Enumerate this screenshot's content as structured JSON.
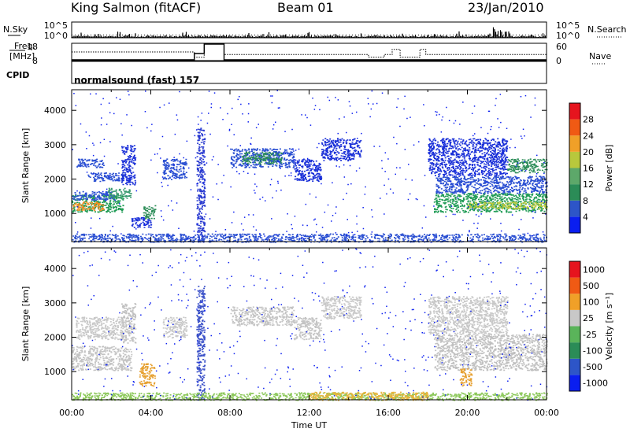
{
  "header": {
    "station": "King Salmon (fitACF)",
    "beam": "Beam 01",
    "date": "23/Jan/2010"
  },
  "top_panels": {
    "nsky_label": "N.Sky",
    "nsearch_label": "N.Search",
    "freq_label_line1": "Freq.",
    "freq_label_line2": "[MHz]",
    "nave_label": "Nave",
    "cpid_label": "CPID",
    "cpid_value": "normalsound (fast) 157",
    "noise_ticks_left": [
      "10^5",
      "10^0"
    ],
    "noise_ticks_right": [
      "10^5",
      "10^0"
    ],
    "freq_ticks": [
      "18",
      "8"
    ],
    "nave_ticks": [
      "60",
      "0"
    ]
  },
  "chart_data": [
    {
      "type": "heatmap",
      "name": "power",
      "ylabel": "Slant Range [km]",
      "yticks": [
        1000,
        2000,
        3000,
        4000
      ],
      "ylim": [
        180,
        4600
      ],
      "xlim": [
        0,
        24
      ],
      "colorbar": {
        "label": "Power [dB]",
        "ticks": [
          "4",
          "8",
          "12",
          "16",
          "20",
          "24",
          "28"
        ],
        "colors": [
          "#0a1ef0",
          "#2d55c8",
          "#2b8c57",
          "#5da86a",
          "#b8c83c",
          "#f0a028",
          "#f05a14",
          "#e6141e"
        ]
      },
      "bands": [
        {
          "t0": 0.0,
          "t1": 2.6,
          "r0": 1050,
          "r1": 1550,
          "color": "#1f9b55"
        },
        {
          "t0": 0.0,
          "t1": 1.6,
          "r0": 1100,
          "r1": 1350,
          "color": "#f08c1e"
        },
        {
          "t0": 0.0,
          "t1": 2.2,
          "r0": 1400,
          "r1": 1650,
          "color": "#2a4fd2"
        },
        {
          "t0": 1.8,
          "t1": 3.0,
          "r0": 1450,
          "r1": 1750,
          "color": "#3a9a70"
        },
        {
          "t0": 0.2,
          "t1": 1.6,
          "r0": 2350,
          "r1": 2600,
          "color": "#2a4fd2"
        },
        {
          "t0": 0.8,
          "t1": 2.6,
          "r0": 1950,
          "r1": 2200,
          "color": "#2a4fd2"
        },
        {
          "t0": 2.5,
          "t1": 3.2,
          "r0": 1850,
          "r1": 3000,
          "color": "#1a30d8"
        },
        {
          "t0": 3.6,
          "t1": 4.2,
          "r0": 850,
          "r1": 1250,
          "color": "#2b8c57"
        },
        {
          "t0": 3.0,
          "t1": 4.0,
          "r0": 600,
          "r1": 900,
          "color": "#1a30d8"
        },
        {
          "t0": 4.6,
          "t1": 5.8,
          "r0": 2000,
          "r1": 2600,
          "color": "#2a4fd2"
        },
        {
          "t0": 6.3,
          "t1": 6.7,
          "r0": 180,
          "r1": 3500,
          "color": "#2a3bd0"
        },
        {
          "t0": 8.0,
          "t1": 11.2,
          "r0": 2350,
          "r1": 2900,
          "color": "#2a4fd2"
        },
        {
          "t0": 8.6,
          "t1": 10.6,
          "r0": 2450,
          "r1": 2800,
          "color": "#2b8c57"
        },
        {
          "t0": 11.2,
          "t1": 12.6,
          "r0": 1950,
          "r1": 2600,
          "color": "#1a30d8"
        },
        {
          "t0": 12.6,
          "t1": 14.6,
          "r0": 2550,
          "r1": 3200,
          "color": "#1a30d8"
        },
        {
          "t0": 18.3,
          "t1": 24.0,
          "r0": 1050,
          "r1": 1600,
          "color": "#1f9b55"
        },
        {
          "t0": 20.0,
          "t1": 24.0,
          "r0": 1150,
          "r1": 1350,
          "color": "#b8c83c"
        },
        {
          "t0": 18.4,
          "t1": 24.0,
          "r0": 1600,
          "r1": 2100,
          "color": "#2a4fd2"
        },
        {
          "t0": 18.0,
          "t1": 22.0,
          "r0": 2100,
          "r1": 3200,
          "color": "#1a30d8"
        },
        {
          "t0": 22.0,
          "t1": 24.0,
          "r0": 2200,
          "r1": 2600,
          "color": "#2b8c57"
        },
        {
          "t0": 0.0,
          "t1": 24.0,
          "r0": 180,
          "r1": 420,
          "color": "#2a4fd2"
        }
      ]
    },
    {
      "type": "heatmap",
      "name": "velocity",
      "ylabel": "Slant Range [km]",
      "yticks": [
        1000,
        2000,
        3000,
        4000
      ],
      "ylim": [
        180,
        4600
      ],
      "xlim": [
        0,
        24
      ],
      "colorbar": {
        "label": "Velocity [m s⁻¹]",
        "ticks": [
          "1000",
          "500",
          "100",
          "25",
          "-25",
          "-100",
          "-500",
          "-1000"
        ],
        "colors": [
          "#0a1ef0",
          "#2d55c8",
          "#2b8c57",
          "#5ab45a",
          "#c8c8c8",
          "#f0a028",
          "#f05a14",
          "#e6141e"
        ]
      },
      "bands": [
        {
          "t0": 0.0,
          "t1": 3.0,
          "r0": 1050,
          "r1": 1750,
          "color": "#c4c4c4"
        },
        {
          "t0": 0.2,
          "t1": 2.6,
          "r0": 1950,
          "r1": 2600,
          "color": "#c8c8c8"
        },
        {
          "t0": 2.5,
          "t1": 3.2,
          "r0": 1850,
          "r1": 3000,
          "color": "#c0c0c0"
        },
        {
          "t0": 3.4,
          "t1": 4.2,
          "r0": 600,
          "r1": 1250,
          "color": "#e6a030"
        },
        {
          "t0": 4.6,
          "t1": 5.8,
          "r0": 2000,
          "r1": 2600,
          "color": "#c8c8c8"
        },
        {
          "t0": 6.3,
          "t1": 6.7,
          "r0": 180,
          "r1": 3500,
          "color": "#3a50c8"
        },
        {
          "t0": 8.0,
          "t1": 11.2,
          "r0": 2350,
          "r1": 2900,
          "color": "#c4c4c4"
        },
        {
          "t0": 11.2,
          "t1": 12.6,
          "r0": 1950,
          "r1": 2600,
          "color": "#c4c4c4"
        },
        {
          "t0": 12.6,
          "t1": 14.6,
          "r0": 2550,
          "r1": 3200,
          "color": "#c8c8c8"
        },
        {
          "t0": 18.3,
          "t1": 24.0,
          "r0": 1050,
          "r1": 2100,
          "color": "#c0c0c0"
        },
        {
          "t0": 18.0,
          "t1": 22.0,
          "r0": 2100,
          "r1": 3200,
          "color": "#c8c8c8"
        },
        {
          "t0": 19.6,
          "t1": 20.2,
          "r0": 600,
          "r1": 1100,
          "color": "#e6a030"
        },
        {
          "t0": 0.0,
          "t1": 24.0,
          "r0": 180,
          "r1": 400,
          "color": "#8cc85a"
        },
        {
          "t0": 12.0,
          "t1": 18.0,
          "r0": 180,
          "r1": 420,
          "color": "#e6b43c"
        }
      ]
    }
  ],
  "xaxis": {
    "label": "Time UT",
    "ticks": [
      "00:00",
      "04:00",
      "08:00",
      "12:00",
      "16:00",
      "20:00",
      "00:00"
    ]
  },
  "freq_trace": [
    {
      "t": 0.0,
      "f": 8
    },
    {
      "t": 6.2,
      "f": 8
    },
    {
      "t": 6.2,
      "f": 12
    },
    {
      "t": 6.7,
      "f": 12
    },
    {
      "t": 6.7,
      "f": 18
    },
    {
      "t": 7.7,
      "f": 18
    },
    {
      "t": 7.7,
      "f": 8
    },
    {
      "t": 24.0,
      "f": 8
    }
  ],
  "nave_trace": [
    {
      "t": 0.0,
      "n": 30
    },
    {
      "t": 6.2,
      "n": 30
    },
    {
      "t": 6.2,
      "n": 10
    },
    {
      "t": 6.7,
      "n": 10
    },
    {
      "t": 6.7,
      "n": 60
    },
    {
      "t": 7.7,
      "n": 60
    },
    {
      "t": 7.7,
      "n": 20
    },
    {
      "t": 15.0,
      "n": 20
    },
    {
      "t": 15.0,
      "n": 10
    },
    {
      "t": 15.8,
      "n": 10
    },
    {
      "t": 15.8,
      "n": 20
    },
    {
      "t": 16.2,
      "n": 20
    },
    {
      "t": 16.2,
      "n": 40
    },
    {
      "t": 16.6,
      "n": 40
    },
    {
      "t": 16.6,
      "n": 10
    },
    {
      "t": 17.6,
      "n": 10
    },
    {
      "t": 17.6,
      "n": 40
    },
    {
      "t": 17.9,
      "n": 40
    },
    {
      "t": 17.9,
      "n": 20
    },
    {
      "t": 24.0,
      "n": 20
    }
  ]
}
